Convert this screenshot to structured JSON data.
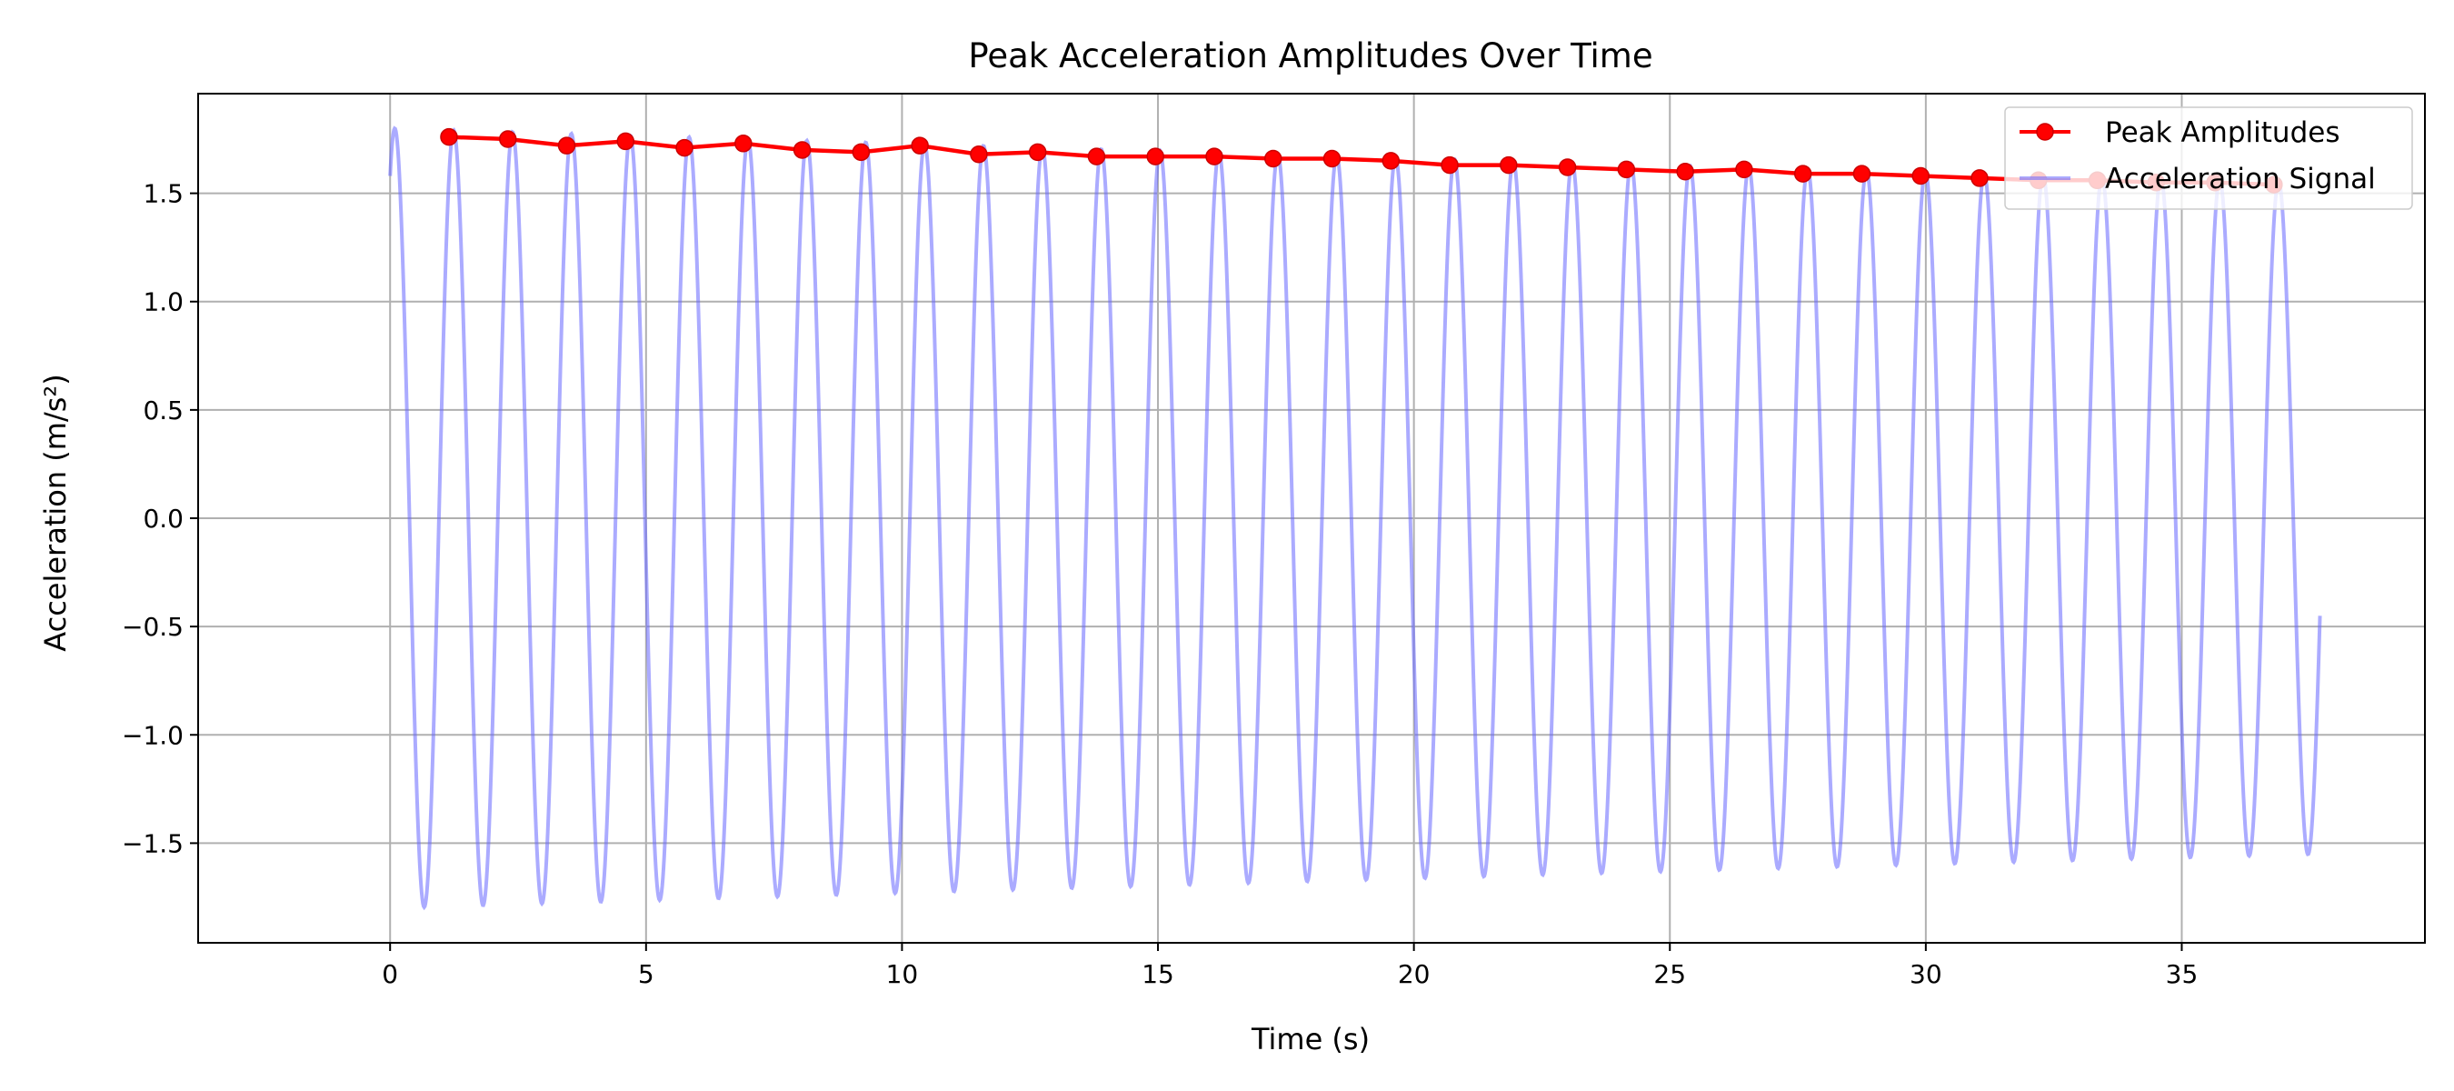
{
  "chart_data": {
    "type": "line",
    "title": "Peak Acceleration Amplitudes Over Time",
    "xlabel": "Time (s)",
    "ylabel": "Acceleration (m/s²)",
    "xlim": [
      -3.75,
      39.75
    ],
    "ylim": [
      -1.96,
      1.96
    ],
    "xticks": [
      0,
      5,
      10,
      15,
      20,
      25,
      30,
      35
    ],
    "xtick_labels": [
      "0",
      "5",
      "10",
      "15",
      "20",
      "25",
      "30",
      "35"
    ],
    "yticks": [
      -1.5,
      -1.0,
      -0.5,
      0.0,
      0.5,
      1.0,
      1.5
    ],
    "ytick_labels": [
      "−1.5",
      "−1.0",
      "−0.5",
      "0.0",
      "0.5",
      "1.0",
      "1.5"
    ],
    "grid": true,
    "legend_position": "top-right",
    "series": [
      {
        "name": "Peak Amplitudes",
        "color": "#ff0000",
        "marker": "circle",
        "x": [
          1.15,
          2.3,
          3.45,
          4.6,
          5.75,
          6.9,
          8.05,
          9.2,
          10.35,
          11.5,
          12.65,
          13.8,
          14.95,
          16.1,
          17.25,
          18.4,
          19.55,
          20.7,
          21.85,
          23.0,
          24.15,
          25.3,
          26.45,
          27.6,
          28.75,
          29.9,
          31.05,
          32.2,
          33.35,
          34.5,
          35.65,
          36.8
        ],
        "y": [
          1.76,
          1.75,
          1.72,
          1.74,
          1.71,
          1.73,
          1.7,
          1.69,
          1.72,
          1.68,
          1.69,
          1.67,
          1.67,
          1.67,
          1.66,
          1.66,
          1.65,
          1.63,
          1.63,
          1.62,
          1.61,
          1.6,
          1.61,
          1.59,
          1.59,
          1.58,
          1.57,
          1.56,
          1.56,
          1.55,
          1.55,
          1.54
        ]
      },
      {
        "name": "Acceleration Signal",
        "color": "#6666ff",
        "opacity": 0.55,
        "style": "damped oscillation, period 1.15 s",
        "x_range": [
          0,
          37.7
        ],
        "start_value": 1.58,
        "initial_amplitude": 1.8,
        "final_amplitude": 1.55,
        "period": 1.15
      }
    ]
  }
}
